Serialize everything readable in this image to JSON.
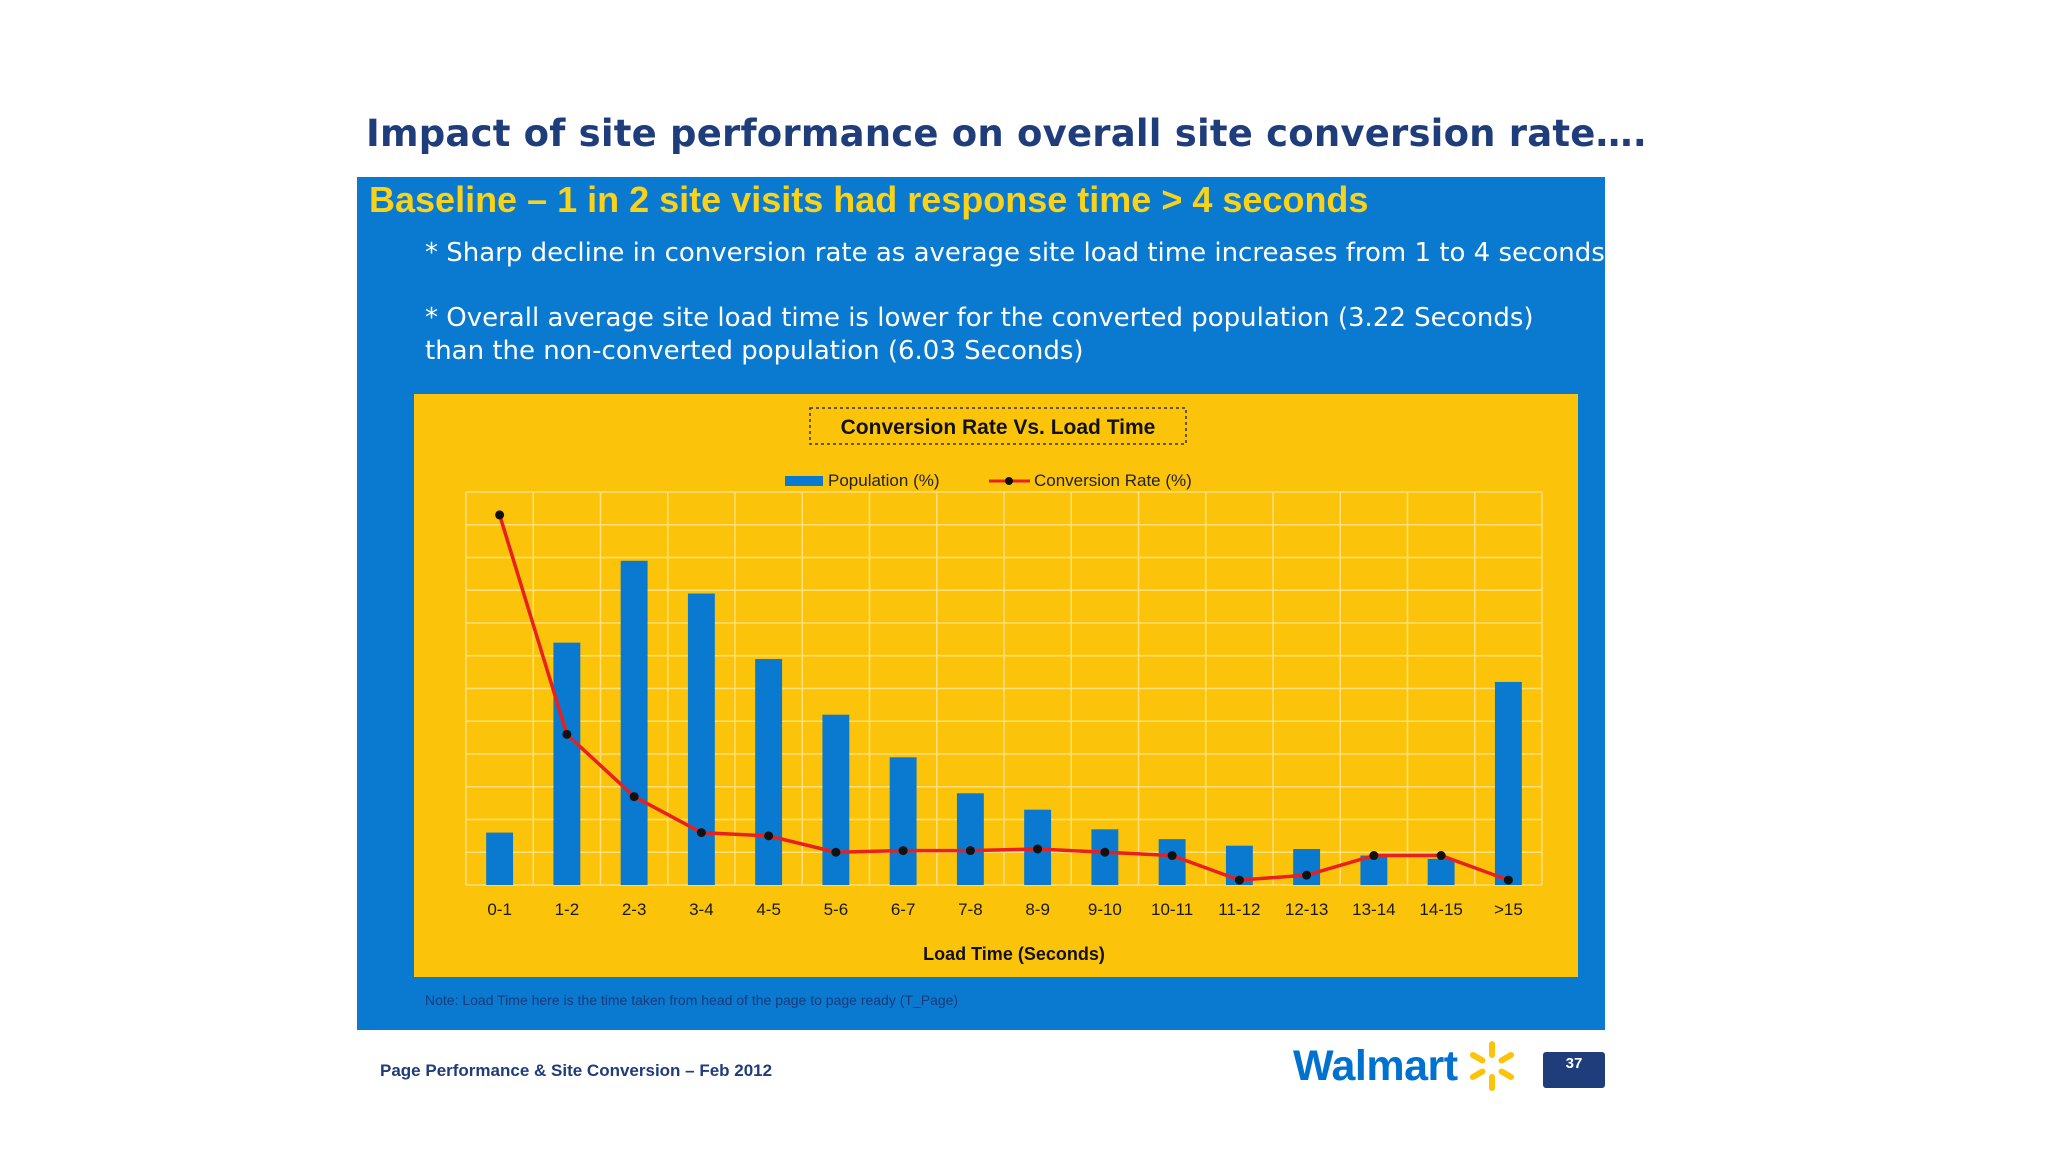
{
  "slide": {
    "title": "Impact of site performance on overall site conversion rate….",
    "subtitle": "Baseline – 1 in 2 site visits had response time > 4 seconds",
    "bullets": [
      "* Sharp decline in conversion rate as average site load time increases from 1 to 4 seconds",
      "* Overall average site load time is lower for the converted population (3.22 Seconds) than the non-converted population (6.03 Seconds)"
    ],
    "note": "Note: Load Time here is the time taken from head of the page to page ready (T_Page)",
    "footer": "Page Performance & Site Conversion – Feb 2012",
    "brand": "Walmart",
    "page_number": "37"
  },
  "colors": {
    "title": "#1f3d7a",
    "panel_blue": "#0a7ad1",
    "subtitle_yellow": "#f9d21c",
    "chart_bg": "#fcc30b",
    "bar": "#0a7ad1",
    "line": "#e8201e",
    "marker": "#111111",
    "spark": "#fcc30b"
  },
  "chart_data": {
    "type": "bar",
    "title": "Conversion Rate Vs. Load Time",
    "xlabel": "Load Time (Seconds)",
    "ylabel": "",
    "categories": [
      "0-1",
      "1-2",
      "2-3",
      "3-4",
      "4-5",
      "5-6",
      "6-7",
      "7-8",
      "8-9",
      "9-10",
      "10-11",
      "11-12",
      "12-13",
      "13-14",
      "14-15",
      ">15"
    ],
    "ylim": [
      0,
      12
    ],
    "grid": true,
    "legend_position": "top-center",
    "series": [
      {
        "name": "Population (%)",
        "type": "bar",
        "values": [
          1.6,
          7.4,
          9.9,
          8.9,
          6.9,
          5.2,
          3.9,
          2.8,
          2.3,
          1.7,
          1.4,
          1.2,
          1.1,
          0.9,
          0.8,
          6.2
        ]
      },
      {
        "name": "Conversion Rate (%)",
        "type": "line",
        "values": [
          11.3,
          4.6,
          2.7,
          1.6,
          1.5,
          1.0,
          1.05,
          1.05,
          1.1,
          1.0,
          0.9,
          0.15,
          0.3,
          0.9,
          0.9,
          0.15
        ]
      }
    ]
  }
}
